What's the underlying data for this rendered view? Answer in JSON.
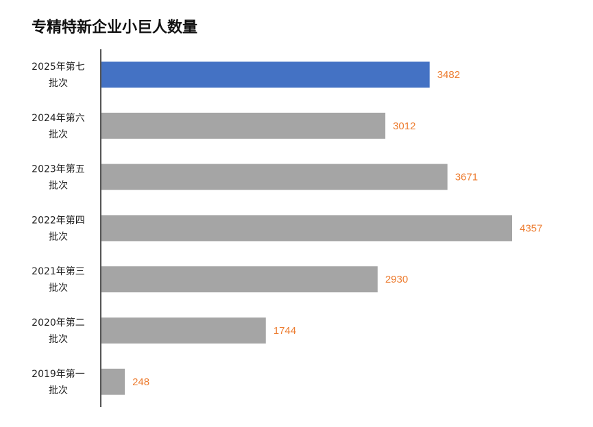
{
  "chart_data": {
    "type": "bar",
    "orientation": "horizontal",
    "title": "专精特新企业小巨人数量",
    "categories": [
      [
        "2025年第七",
        "批次"
      ],
      [
        "2024年第六",
        "批次"
      ],
      [
        "2023年第五",
        "批次"
      ],
      [
        "2022年第四",
        "批次"
      ],
      [
        "2021年第三",
        "批次"
      ],
      [
        "2020年第二",
        "批次"
      ],
      [
        "2019年第一",
        "批次"
      ]
    ],
    "values": [
      3482,
      3012,
      3671,
      4357,
      2930,
      1744,
      248
    ],
    "data_labels": [
      "3482",
      "3012",
      "3671",
      "4357",
      "2930",
      "1744",
      "248"
    ],
    "colors": {
      "highlight_bar": "#4472C4",
      "bar": "#A5A5A5",
      "label": "#ED7D31",
      "axis": "#555555"
    },
    "highlight_index": 0,
    "xlim": [
      0,
      4357
    ],
    "grid": false,
    "legend": "none"
  }
}
